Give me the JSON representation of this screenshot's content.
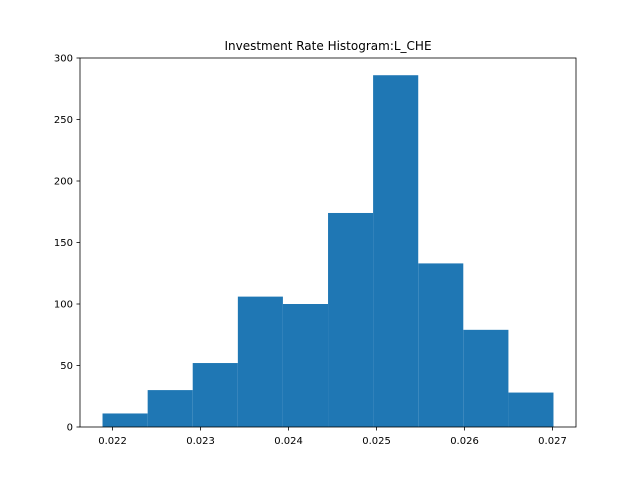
{
  "chart_data": {
    "type": "histogram",
    "title": "Investment Rate Histogram:L_CHE",
    "bins": [
      0.021886,
      0.022399,
      0.022911,
      0.023424,
      0.023936,
      0.024449,
      0.024961,
      0.025474,
      0.025986,
      0.026499,
      0.027011
    ],
    "values": [
      11,
      30,
      52,
      106,
      100,
      174,
      286,
      133,
      79,
      28
    ],
    "color": "#1f77b4",
    "xlim": [
      0.02163,
      0.027267
    ],
    "xticks": [
      0.022,
      0.023,
      0.024,
      0.025,
      0.026,
      0.027
    ],
    "ylim": [
      0,
      300
    ],
    "yticks": [
      0,
      50,
      100,
      150,
      200,
      250,
      300
    ]
  }
}
